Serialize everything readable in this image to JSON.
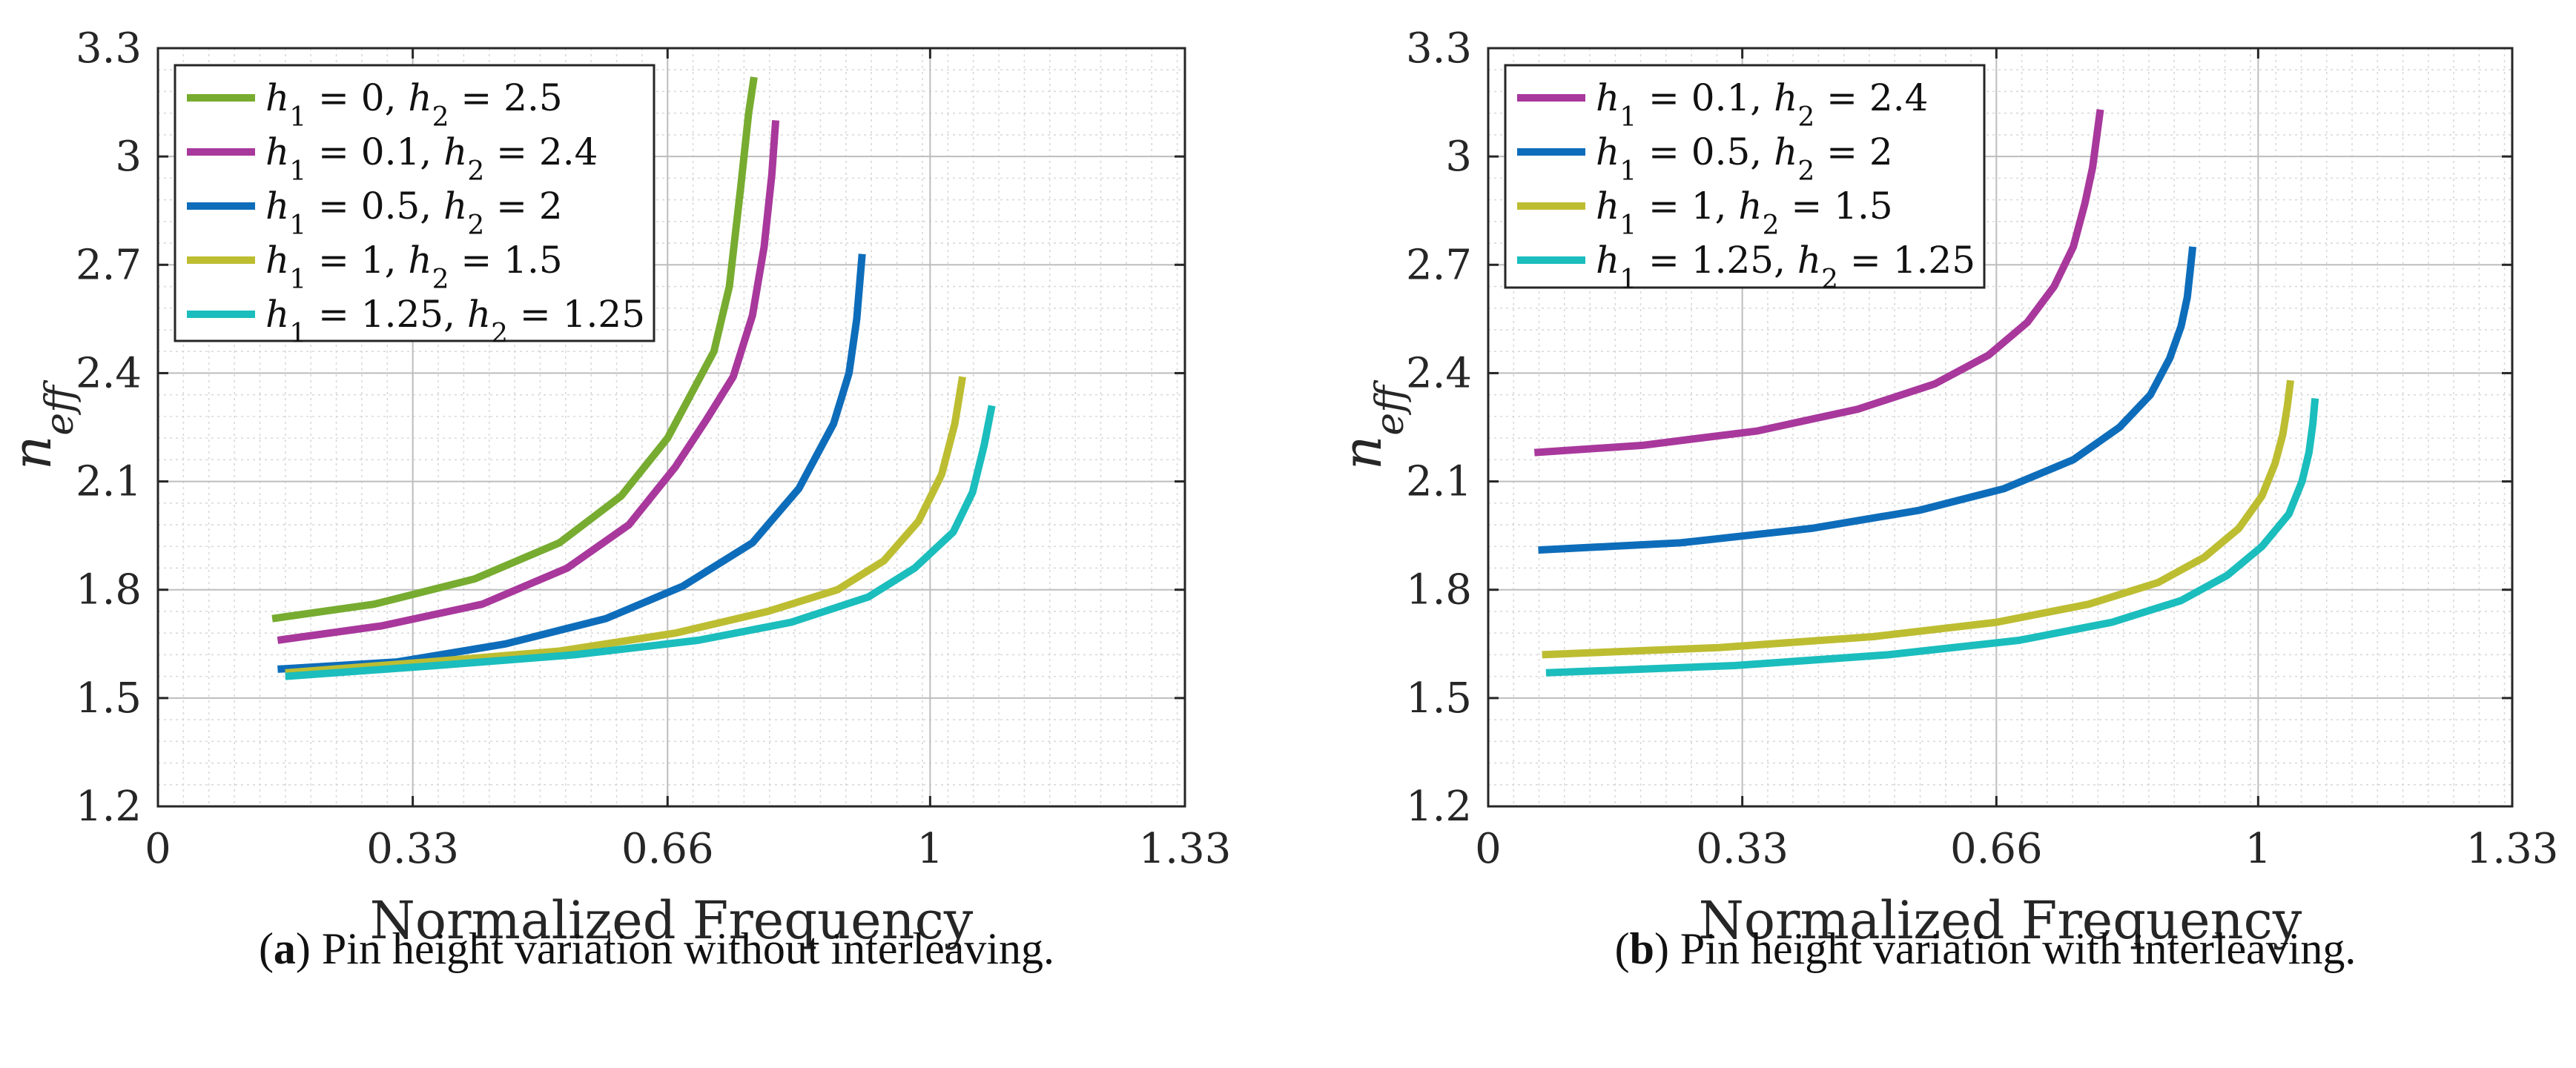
{
  "chart_data": [
    {
      "type": "line",
      "panel": "a",
      "xlabel": "Normalized Frequency",
      "ylabel": "n_eff",
      "ylabel_main": "n",
      "ylabel_sub": "eff",
      "xlim": [
        0,
        1.33
      ],
      "ylim": [
        1.2,
        3.3
      ],
      "xticks": [
        0,
        0.33,
        0.66,
        1,
        1.33
      ],
      "xtick_labels": [
        "0",
        "0.33",
        "0.66",
        "1",
        "1.33"
      ],
      "yticks": [
        1.2,
        1.5,
        1.8,
        2.1,
        2.4,
        2.7,
        3,
        3.3
      ],
      "ytick_labels": [
        "1.2",
        "1.5",
        "1.8",
        "2.1",
        "2.4",
        "2.7",
        "3",
        "3.3"
      ],
      "grid": true,
      "legend_position": "top-left",
      "caption_label": "a",
      "caption_text": "Pin height variation without interleaving.",
      "series": [
        {
          "name": "h1 = 0, h2 = 2.5",
          "legend_h1": "0",
          "legend_h2": "2.5",
          "color": "#77AC30",
          "x": [
            0.148,
            0.28,
            0.41,
            0.52,
            0.6,
            0.66,
            0.69,
            0.72,
            0.74,
            0.755,
            0.765,
            0.772
          ],
          "y": [
            1.72,
            1.76,
            1.83,
            1.93,
            2.06,
            2.22,
            2.34,
            2.46,
            2.64,
            2.92,
            3.12,
            3.22
          ]
        },
        {
          "name": "h1 = 0.1, h2 = 2.4",
          "legend_h1": "0.1",
          "legend_h2": "2.4",
          "color": "#A8389C",
          "x": [
            0.155,
            0.29,
            0.42,
            0.53,
            0.61,
            0.67,
            0.71,
            0.745,
            0.77,
            0.785,
            0.795,
            0.8
          ],
          "y": [
            1.66,
            1.7,
            1.76,
            1.86,
            1.98,
            2.14,
            2.27,
            2.39,
            2.56,
            2.75,
            2.95,
            3.1
          ]
        },
        {
          "name": "h1 = 0.5, h2 = 2",
          "legend_h1": "0.5",
          "legend_h2": "2",
          "color": "#0E6DBA",
          "x": [
            0.155,
            0.31,
            0.45,
            0.58,
            0.68,
            0.77,
            0.83,
            0.875,
            0.895,
            0.905,
            0.912
          ],
          "y": [
            1.58,
            1.6,
            1.65,
            1.72,
            1.81,
            1.93,
            2.08,
            2.26,
            2.4,
            2.55,
            2.73
          ]
        },
        {
          "name": "h1 = 1, h2 = 1.5",
          "legend_h1": "1",
          "legend_h2": "1.5",
          "color": "#BDBD32",
          "x": [
            0.165,
            0.35,
            0.52,
            0.67,
            0.79,
            0.88,
            0.94,
            0.985,
            1.015,
            1.032,
            1.042
          ],
          "y": [
            1.57,
            1.6,
            1.63,
            1.68,
            1.74,
            1.8,
            1.88,
            1.99,
            2.12,
            2.26,
            2.39
          ]
        },
        {
          "name": "h1 = 1.25, h2 = 1.25",
          "legend_h1": "1.25",
          "legend_h2": "1.25",
          "color": "#1BBDBD",
          "x": [
            0.165,
            0.36,
            0.54,
            0.7,
            0.82,
            0.92,
            0.98,
            1.03,
            1.055,
            1.07,
            1.08
          ],
          "y": [
            1.56,
            1.59,
            1.62,
            1.66,
            1.71,
            1.78,
            1.86,
            1.96,
            2.07,
            2.2,
            2.31
          ]
        }
      ]
    },
    {
      "type": "line",
      "panel": "b",
      "xlabel": "Normalized Frequency",
      "ylabel": "n_eff",
      "ylabel_main": "n",
      "ylabel_sub": "eff",
      "xlim": [
        0,
        1.33
      ],
      "ylim": [
        1.2,
        3.3
      ],
      "xticks": [
        0,
        0.33,
        0.66,
        1,
        1.33
      ],
      "xtick_labels": [
        "0",
        "0.33",
        "0.66",
        "1",
        "1.33"
      ],
      "yticks": [
        1.2,
        1.5,
        1.8,
        2.1,
        2.4,
        2.7,
        3,
        3.3
      ],
      "ytick_labels": [
        "1.2",
        "1.5",
        "1.8",
        "2.1",
        "2.4",
        "2.7",
        "3",
        "3.3"
      ],
      "grid": true,
      "legend_position": "top-left",
      "caption_label": "b",
      "caption_text": "Pin height variation with interleaving.",
      "series": [
        {
          "name": "h1 = 0.1, h2 = 2.4",
          "legend_h1": "0.1",
          "legend_h2": "2.4",
          "color": "#A8389C",
          "x": [
            0.06,
            0.2,
            0.35,
            0.48,
            0.58,
            0.65,
            0.7,
            0.735,
            0.76,
            0.775,
            0.785,
            0.79,
            0.795
          ],
          "y": [
            2.18,
            2.2,
            2.24,
            2.3,
            2.37,
            2.45,
            2.54,
            2.64,
            2.75,
            2.87,
            2.97,
            3.05,
            3.13
          ]
        },
        {
          "name": "h1 = 0.5, h2 = 2",
          "legend_h1": "0.5",
          "legend_h2": "2",
          "color": "#0E6DBA",
          "x": [
            0.065,
            0.25,
            0.42,
            0.56,
            0.67,
            0.76,
            0.82,
            0.86,
            0.885,
            0.9,
            0.908,
            0.912,
            0.915
          ],
          "y": [
            1.91,
            1.93,
            1.97,
            2.02,
            2.08,
            2.16,
            2.25,
            2.34,
            2.44,
            2.53,
            2.61,
            2.69,
            2.75
          ]
        },
        {
          "name": "h1 = 1, h2 = 1.5",
          "legend_h1": "1",
          "legend_h2": "1.5",
          "color": "#BDBD32",
          "x": [
            0.07,
            0.3,
            0.5,
            0.66,
            0.78,
            0.87,
            0.93,
            0.975,
            1.005,
            1.022,
            1.032,
            1.038,
            1.042
          ],
          "y": [
            1.62,
            1.64,
            1.67,
            1.71,
            1.76,
            1.82,
            1.89,
            1.97,
            2.06,
            2.15,
            2.23,
            2.31,
            2.38
          ]
        },
        {
          "name": "h1 = 1.25, h2 = 1.25",
          "legend_h1": "1.25",
          "legend_h2": "1.25",
          "color": "#1BBDBD",
          "x": [
            0.075,
            0.32,
            0.52,
            0.69,
            0.81,
            0.9,
            0.96,
            1.005,
            1.04,
            1.057,
            1.066,
            1.071,
            1.074
          ],
          "y": [
            1.57,
            1.59,
            1.62,
            1.66,
            1.71,
            1.77,
            1.84,
            1.92,
            2.01,
            2.1,
            2.18,
            2.26,
            2.33
          ]
        }
      ]
    }
  ]
}
